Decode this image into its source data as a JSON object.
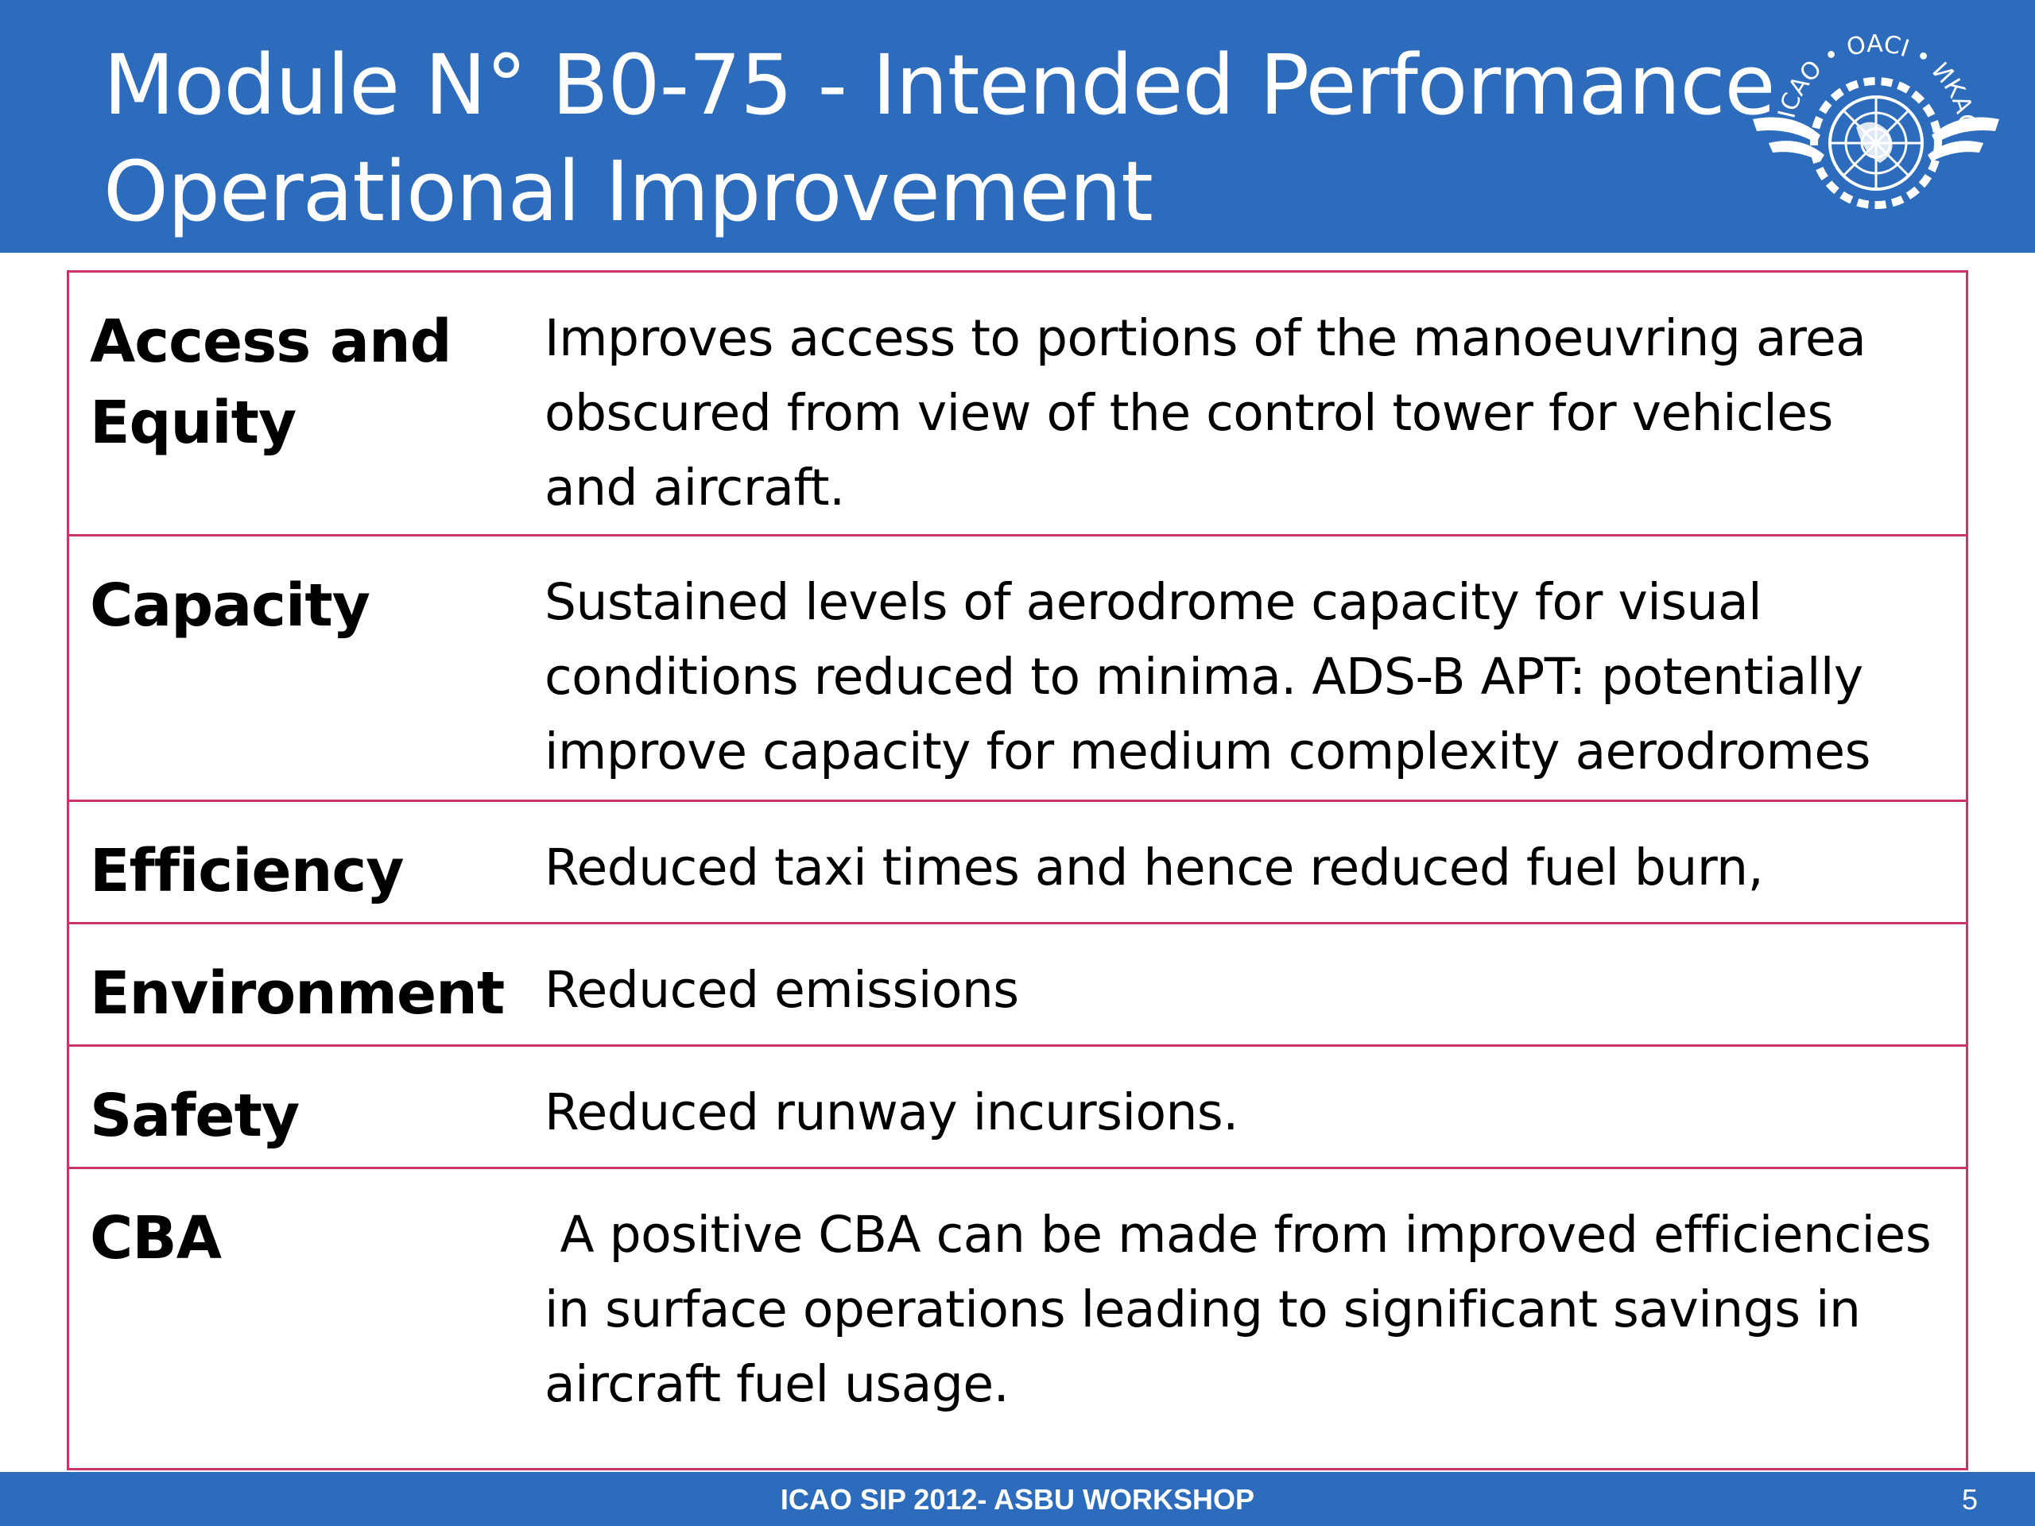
{
  "slide": {
    "title_line1": "Module N° B0-75 - Intended Performance",
    "title_line2": "Operational Improvement",
    "logo_icon": "icao-emblem-icon",
    "logo_text": "ICAO • OACI • ИКАО"
  },
  "table": {
    "rows": [
      {
        "label_lines": [
          "Access and",
          "Equity"
        ],
        "value_lines": [
          "Improves access to portions of the manoeuvring area",
          "obscured from view of the control tower for vehicles",
          "and aircraft."
        ]
      },
      {
        "label_lines": [
          "Capacity"
        ],
        "value_lines": [
          "Sustained levels of aerodrome capacity for visual",
          "conditions reduced to minima. ADS-B APT: potentially",
          "improve capacity for medium complexity aerodromes"
        ]
      },
      {
        "label_lines": [
          "Efficiency"
        ],
        "value_lines": [
          "Reduced taxi times and hence reduced fuel burn,"
        ]
      },
      {
        "label_lines": [
          "Environment"
        ],
        "value_lines": [
          "Reduced emissions"
        ]
      },
      {
        "label_lines": [
          "Safety"
        ],
        "value_lines": [
          "Reduced runway incursions."
        ]
      },
      {
        "label_lines": [
          "CBA"
        ],
        "value_lines": [
          " A positive CBA can be made from improved efficiencies",
          "in surface operations leading to significant savings in",
          "aircraft fuel usage."
        ]
      }
    ]
  },
  "footer": {
    "text": "ICAO SIP 2012- ASBU WORKSHOP",
    "page_number": "5"
  }
}
